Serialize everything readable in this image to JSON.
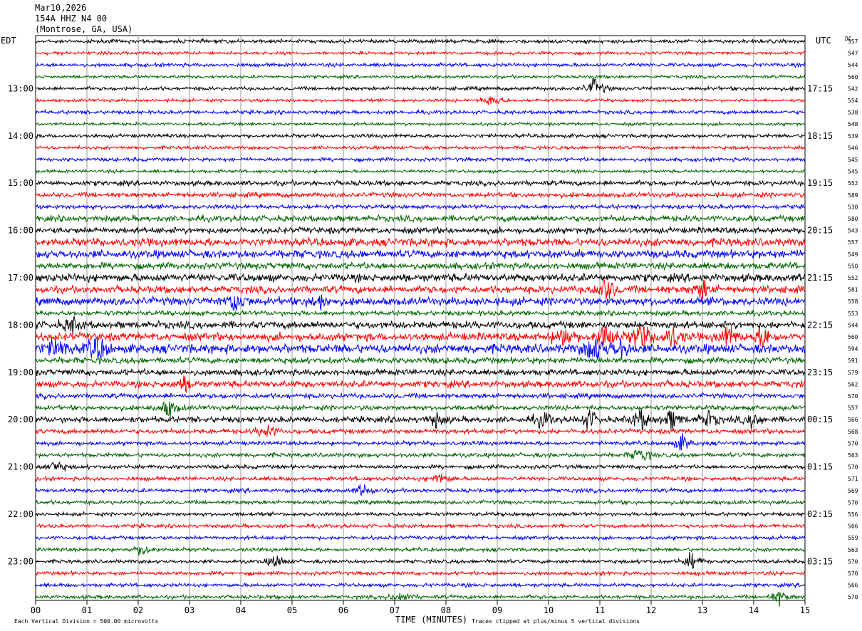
{
  "header": {
    "date": "Mar10,2026",
    "station": "154A HHZ N4 00",
    "location": "(Montrose, GA, USA)"
  },
  "labels": {
    "left_tz": "EDT",
    "right_tz": "UTC",
    "dc": "DC",
    "xlabel": "TIME (MINUTES)",
    "scale_note": "Each Vertical Division =  500.00 microvolts",
    "clip_note": "Traces clipped at plus/minus 5 vertical divisions"
  },
  "chart_data": {
    "type": "line",
    "title": "",
    "xlabel": "TIME (MINUTES)",
    "xlim": [
      0,
      15
    ],
    "x_ticks": [
      "00",
      "01",
      "02",
      "03",
      "04",
      "05",
      "06",
      "07",
      "08",
      "09",
      "10",
      "11",
      "12",
      "13",
      "14",
      "15"
    ],
    "trace_colors": [
      "#000000",
      "#ff0000",
      "#0000ff",
      "#006400"
    ],
    "left_hours": [
      "13:00",
      "14:00",
      "15:00",
      "16:00",
      "17:00",
      "18:00",
      "19:00",
      "20:00",
      "21:00",
      "22:00",
      "23:00"
    ],
    "right_hours": [
      "17:15",
      "18:15",
      "19:15",
      "20:15",
      "21:15",
      "22:15",
      "23:15",
      "00:15",
      "01:15",
      "02:15",
      "03:15"
    ],
    "dc_offsets": [
      557,
      547,
      544,
      560,
      542,
      554,
      538,
      548,
      539,
      546,
      545,
      545,
      552,
      589,
      530,
      580,
      543,
      557,
      549,
      550,
      552,
      581,
      558,
      553,
      544,
      560,
      594,
      591,
      579,
      562,
      570,
      557,
      566,
      568,
      570,
      563,
      570,
      571,
      569,
      570,
      556,
      566,
      559,
      563,
      570,
      570,
      566,
      570
    ],
    "amplitudes": [
      1.2,
      1.0,
      1.2,
      1.0,
      1.2,
      1.0,
      1.2,
      1.0,
      1.2,
      1.1,
      1.2,
      1.0,
      1.6,
      1.6,
      1.4,
      2.0,
      2.0,
      2.6,
      2.6,
      2.2,
      2.6,
      2.4,
      2.6,
      1.6,
      2.4,
      2.6,
      3.0,
      2.0,
      2.0,
      2.2,
      1.6,
      1.6,
      2.0,
      1.6,
      1.3,
      1.4,
      1.3,
      1.3,
      1.3,
      1.3,
      1.2,
      1.2,
      1.2,
      1.2,
      1.2,
      1.2,
      1.2,
      1.2
    ],
    "events": [
      {
        "trace": 4,
        "minute": 10.9,
        "amp": 8
      },
      {
        "trace": 5,
        "minute": 8.9,
        "amp": 5
      },
      {
        "trace": 21,
        "minute": 13.0,
        "amp": 8
      },
      {
        "trace": 21,
        "minute": 11.1,
        "amp": 12
      },
      {
        "trace": 22,
        "minute": 3.9,
        "amp": 9
      },
      {
        "trace": 22,
        "minute": 5.5,
        "amp": 7
      },
      {
        "trace": 24,
        "minute": 0.7,
        "amp": 6
      },
      {
        "trace": 25,
        "minute": 10.3,
        "amp": 10
      },
      {
        "trace": 25,
        "minute": 11.1,
        "amp": 14
      },
      {
        "trace": 25,
        "minute": 11.8,
        "amp": 14
      },
      {
        "trace": 25,
        "minute": 12.4,
        "amp": 10
      },
      {
        "trace": 25,
        "minute": 13.5,
        "amp": 9
      },
      {
        "trace": 25,
        "minute": 14.2,
        "amp": 9
      },
      {
        "trace": 26,
        "minute": 0.4,
        "amp": 11
      },
      {
        "trace": 26,
        "minute": 1.2,
        "amp": 14
      },
      {
        "trace": 26,
        "minute": 10.9,
        "amp": 13
      },
      {
        "trace": 26,
        "minute": 11.4,
        "amp": 7
      },
      {
        "trace": 29,
        "minute": 2.9,
        "amp": 5
      },
      {
        "trace": 31,
        "minute": 2.6,
        "amp": 7
      },
      {
        "trace": 32,
        "minute": 7.8,
        "amp": 5
      },
      {
        "trace": 32,
        "minute": 9.9,
        "amp": 6
      },
      {
        "trace": 32,
        "minute": 10.8,
        "amp": 7
      },
      {
        "trace": 32,
        "minute": 11.8,
        "amp": 9
      },
      {
        "trace": 32,
        "minute": 12.4,
        "amp": 8
      },
      {
        "trace": 32,
        "minute": 13.1,
        "amp": 8
      },
      {
        "trace": 32,
        "minute": 14.0,
        "amp": 6
      },
      {
        "trace": 33,
        "minute": 4.5,
        "amp": 7
      },
      {
        "trace": 34,
        "minute": 12.6,
        "amp": 6
      },
      {
        "trace": 35,
        "minute": 11.8,
        "amp": 6
      },
      {
        "trace": 36,
        "minute": 0.4,
        "amp": 5
      },
      {
        "trace": 37,
        "minute": 7.9,
        "amp": 5
      },
      {
        "trace": 38,
        "minute": 6.4,
        "amp": 5
      },
      {
        "trace": 43,
        "minute": 2.1,
        "amp": 5
      },
      {
        "trace": 44,
        "minute": 4.7,
        "amp": 5
      },
      {
        "trace": 44,
        "minute": 12.8,
        "amp": 6
      },
      {
        "trace": 47,
        "minute": 7.1,
        "amp": 5
      },
      {
        "trace": 47,
        "minute": 14.5,
        "amp": 5
      }
    ]
  }
}
